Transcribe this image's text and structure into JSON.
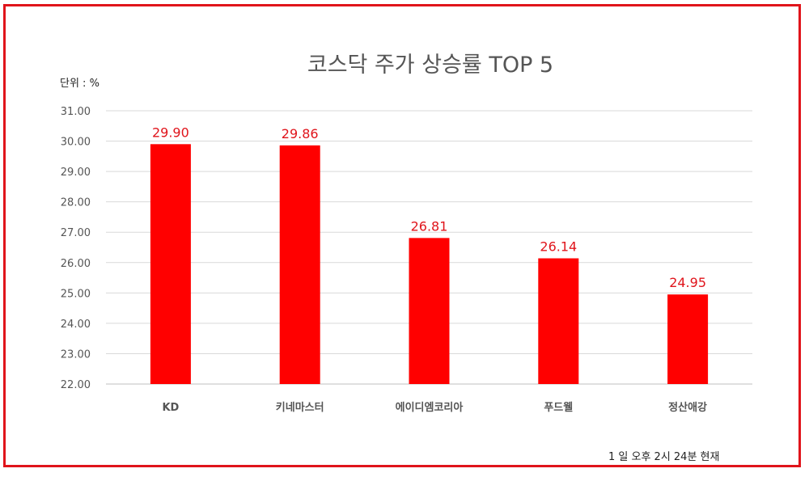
{
  "chart_data": {
    "type": "bar",
    "title": "코스닥 주가 상승률 TOP 5",
    "unit_label": "단위 : %",
    "footnote": "1 일  오후 2시 24분 현재",
    "categories": [
      "KD",
      "키네마스터",
      "에이디엠코리아",
      "푸드웰",
      "정산애강"
    ],
    "values": [
      29.9,
      29.86,
      26.81,
      26.14,
      24.95
    ],
    "data_labels": [
      "29.90",
      "29.86",
      "26.81",
      "26.14",
      "24.95"
    ],
    "y_ticks": [
      "22.00",
      "23.00",
      "24.00",
      "25.00",
      "26.00",
      "27.00",
      "28.00",
      "29.00",
      "30.00",
      "31.00"
    ],
    "ylim": [
      22,
      31
    ],
    "grid": true,
    "legend": "none",
    "bar_color": "#ff0000",
    "frame_color": "#e0141b"
  }
}
